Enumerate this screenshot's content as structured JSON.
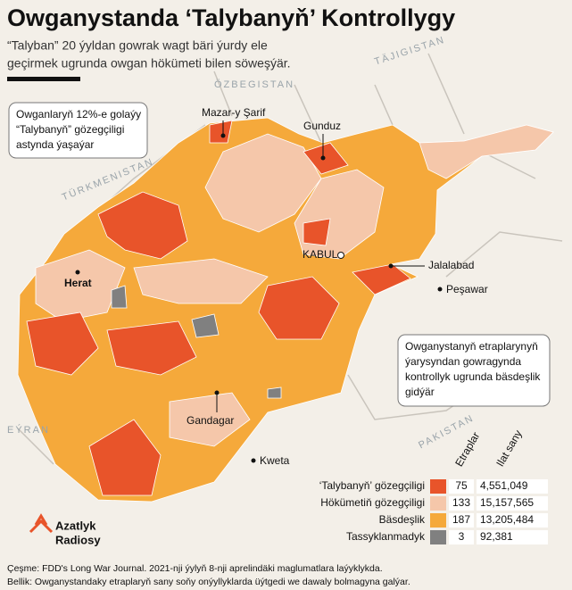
{
  "header": {
    "title": "Owganystanda ‘Talybanyň’ Kontrollygy",
    "subtitle": [
      "“Talyban” 20 ýyldan gowrak wagt bäri ýurdy ele",
      "geçirmek ugrunda owgan hökümeti bilen söweşýär."
    ]
  },
  "map": {
    "countries": [
      "ÖZBEGISTAN",
      "TÄJIGISTAN",
      "TÜRKMENISTAN",
      "EÝRAN",
      "PAKISTAN"
    ],
    "cities": [
      "Mazar-y Şarif",
      "Gunduz",
      "KABUL",
      "Jalalabad",
      "Peşawar",
      "Herat",
      "Gandagar",
      "Kweta"
    ],
    "notes": [
      [
        "Owganlaryň 12%-e golaýy",
        "“Talybanyň” gözegçiligi",
        "astynda ýaşaýar"
      ],
      [
        "Owganystanyň etraplarynyň",
        "ýarysyndan gowragynda",
        "kontrollyk ugrunda bäsdeşlik",
        "gidýär"
      ]
    ]
  },
  "legend": {
    "headers": [
      "Etraplar",
      "Ilat sany"
    ],
    "rows": [
      {
        "label": "‘Talybanyň’ gözegçiligi",
        "color": "#e8542a",
        "districts": 75,
        "population": "4,551,049"
      },
      {
        "label": "Hökümetiň gözegçiligi",
        "color": "#f5c7aa",
        "districts": 133,
        "population": "15,157,565"
      },
      {
        "label": "Bäsdeşlik",
        "color": "#f5a93b",
        "districts": 187,
        "population": "13,205,484"
      },
      {
        "label": "Tassyklanmadyk",
        "color": "#808080",
        "districts": 3,
        "population": "92,381"
      }
    ]
  },
  "logo": [
    "Azatlyk",
    "Radiosy"
  ],
  "footer": [
    "Çeşme: FDD's Long War Journal.  2021-nji ýylyň 8-nji aprelindäki maglumatlara laýyklykda.",
    "Bellik: Owganystandaky etraplaryň sany soňy onýyllyklarda üýtgedi we dawaly bolmagyna galýar."
  ]
}
